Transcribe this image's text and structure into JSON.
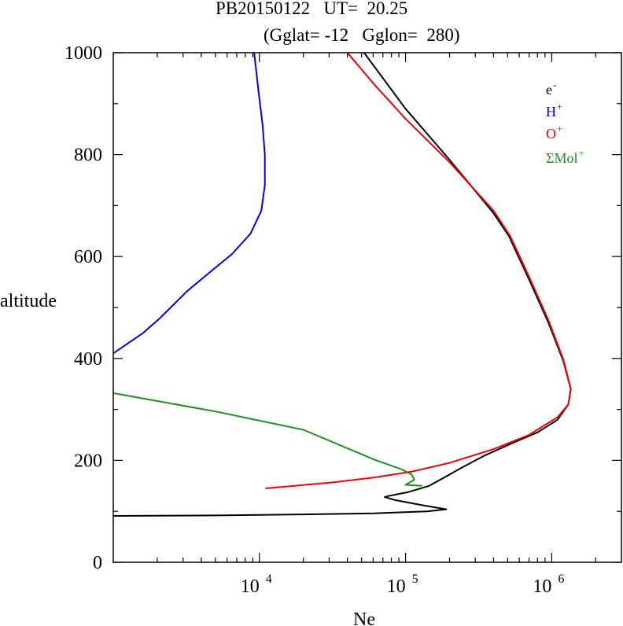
{
  "chart_data": {
    "type": "line",
    "title": "PB20150122   UT=  20.25",
    "subtitle": "(Gglat= -12   Gglon=  280)",
    "xlabel": "Ne",
    "ylabel": "altitude",
    "x_scale": "log",
    "xlim": [
      1000,
      3000000
    ],
    "ylim": [
      0,
      1000
    ],
    "yticks": [
      "0",
      "200",
      "400",
      "600",
      "800",
      "1000"
    ],
    "xticks": [
      {
        "value": 10000,
        "base": "10",
        "exp": "4"
      },
      {
        "value": 100000,
        "base": "10",
        "exp": "5"
      },
      {
        "value": 1000000,
        "base": "10",
        "exp": "6"
      }
    ],
    "legend": {
      "placement": "top-right",
      "entries": [
        {
          "base": "e",
          "sup": "-",
          "color": "#000000"
        },
        {
          "base": "H",
          "sup": "+",
          "color": "#0000ee"
        },
        {
          "base": "O",
          "sup": "+",
          "color": "#ee0000"
        },
        {
          "base": "ΣMol",
          "sup": "+",
          "color": "#228b22"
        }
      ]
    },
    "series": [
      {
        "key": "electron",
        "color": "#000000",
        "points": [
          [
            52000,
            1000
          ],
          [
            100000,
            890
          ],
          [
            200000,
            790
          ],
          [
            400000,
            685
          ],
          [
            510000,
            640
          ],
          [
            700000,
            555
          ],
          [
            950000,
            470
          ],
          [
            1200000,
            395
          ],
          [
            1350000,
            340
          ],
          [
            1300000,
            310
          ],
          [
            1100000,
            280
          ],
          [
            800000,
            255
          ],
          [
            550000,
            235
          ],
          [
            350000,
            210
          ],
          [
            240000,
            185
          ],
          [
            180000,
            165
          ],
          [
            145000,
            150
          ],
          [
            105000,
            138
          ],
          [
            76000,
            130
          ],
          [
            72000,
            128
          ],
          [
            85000,
            122
          ],
          [
            130000,
            112
          ],
          [
            190000,
            104
          ],
          [
            140000,
            100
          ],
          [
            60000,
            96
          ],
          [
            20000,
            94
          ],
          [
            5000,
            92
          ],
          [
            1000,
            91
          ]
        ]
      },
      {
        "key": "H+",
        "color": "#0000ee",
        "points": [
          [
            9200,
            1000
          ],
          [
            9800,
            930
          ],
          [
            10500,
            860
          ],
          [
            10900,
            800
          ],
          [
            10900,
            740
          ],
          [
            10300,
            690
          ],
          [
            8700,
            645
          ],
          [
            6500,
            605
          ],
          [
            4400,
            565
          ],
          [
            3200,
            532
          ],
          [
            2100,
            480
          ],
          [
            1600,
            450
          ],
          [
            1000,
            410
          ]
        ]
      },
      {
        "key": "O+",
        "color": "#ee0000",
        "points": [
          [
            40000,
            1000
          ],
          [
            60000,
            940
          ],
          [
            100000,
            870
          ],
          [
            200000,
            785
          ],
          [
            400000,
            690
          ],
          [
            520000,
            640
          ],
          [
            700000,
            560
          ],
          [
            950000,
            475
          ],
          [
            1200000,
            398
          ],
          [
            1350000,
            340
          ],
          [
            1300000,
            310
          ],
          [
            1100000,
            285
          ],
          [
            700000,
            250
          ],
          [
            400000,
            222
          ],
          [
            200000,
            195
          ],
          [
            110000,
            178
          ],
          [
            60000,
            166
          ],
          [
            30000,
            156
          ],
          [
            11000,
            145
          ]
        ]
      },
      {
        "key": "Mol+",
        "color": "#228b22",
        "points": [
          [
            1000,
            332
          ],
          [
            5000,
            296
          ],
          [
            20000,
            260
          ],
          [
            63000,
            200
          ],
          [
            95000,
            182
          ],
          [
            110000,
            172
          ],
          [
            115000,
            162
          ],
          [
            100000,
            152
          ],
          [
            130000,
            150
          ]
        ]
      }
    ]
  }
}
